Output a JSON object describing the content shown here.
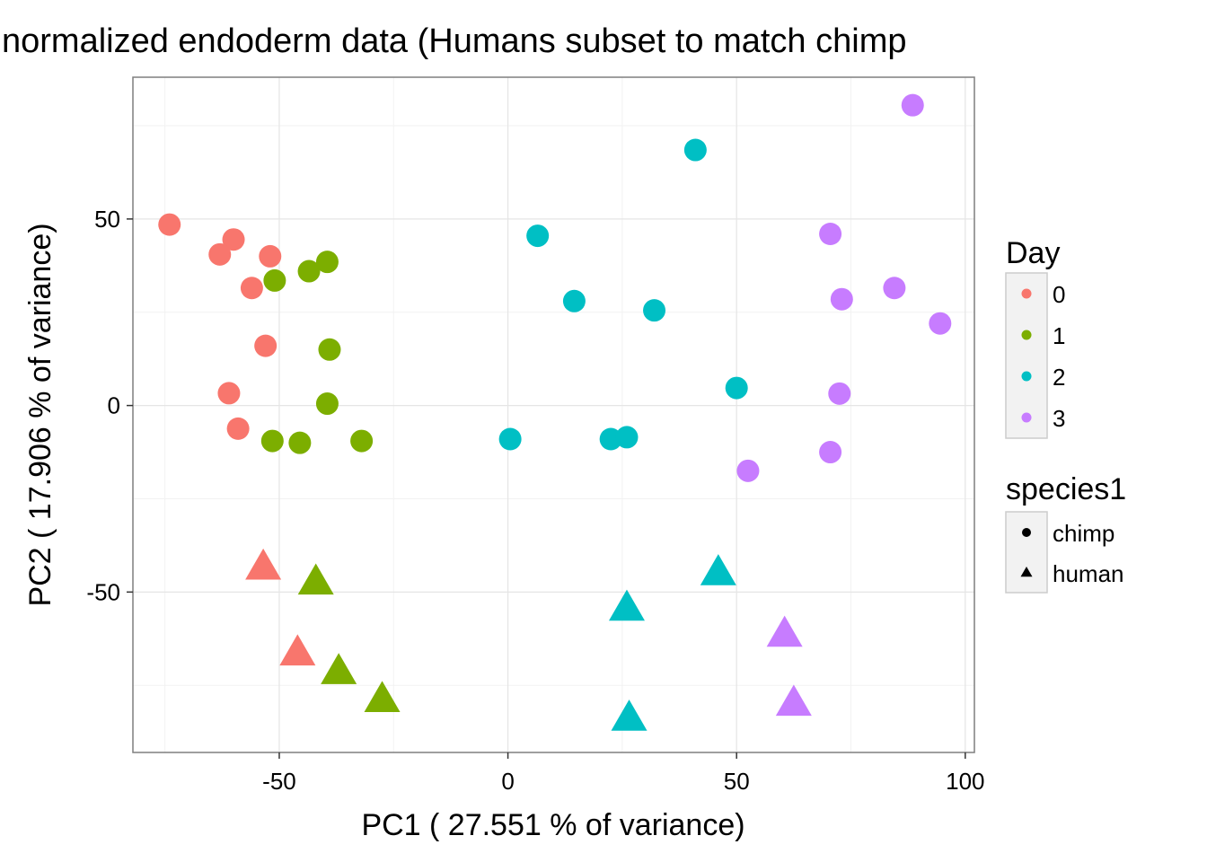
{
  "chart_data": {
    "type": "scatter",
    "title": "normalized endoderm data (Humans subset to match chimp",
    "xlabel": "PC1 ( 27.551 % of variance)",
    "ylabel": "PC2 ( 17.906 % of variance)",
    "xlim": [
      -82,
      102
    ],
    "ylim": [
      -93,
      88
    ],
    "xticks": [
      -50,
      0,
      50,
      100
    ],
    "xtick_labels": [
      "-50",
      "0",
      "50",
      "100"
    ],
    "yticks": [
      -50,
      0,
      50
    ],
    "ytick_labels": [
      "-50",
      "0",
      "50"
    ],
    "grid": true,
    "legend_position": "right",
    "legend_color": {
      "title": "Day",
      "entries": [
        {
          "label": "0",
          "color": "#F8766D"
        },
        {
          "label": "1",
          "color": "#7CAE00"
        },
        {
          "label": "2",
          "color": "#00BFC4"
        },
        {
          "label": "3",
          "color": "#C77CFF"
        }
      ]
    },
    "legend_shape": {
      "title": "species1",
      "entries": [
        {
          "label": "chimp",
          "shape": "circle"
        },
        {
          "label": "human",
          "shape": "triangle"
        }
      ]
    },
    "points": [
      {
        "x": -74,
        "y": 48.5,
        "day": "0",
        "species": "chimp"
      },
      {
        "x": -60,
        "y": 44.5,
        "day": "0",
        "species": "chimp"
      },
      {
        "x": -63,
        "y": 40.5,
        "day": "0",
        "species": "chimp"
      },
      {
        "x": -52,
        "y": 40,
        "day": "0",
        "species": "chimp"
      },
      {
        "x": -56,
        "y": 31.5,
        "day": "0",
        "species": "chimp"
      },
      {
        "x": -53,
        "y": 16,
        "day": "0",
        "species": "chimp"
      },
      {
        "x": -61,
        "y": 3.3,
        "day": "0",
        "species": "chimp"
      },
      {
        "x": -59,
        "y": -6.2,
        "day": "0",
        "species": "chimp"
      },
      {
        "x": -51,
        "y": 33.5,
        "day": "1",
        "species": "chimp"
      },
      {
        "x": -43.5,
        "y": 36,
        "day": "1",
        "species": "chimp"
      },
      {
        "x": -39.5,
        "y": 38.5,
        "day": "1",
        "species": "chimp"
      },
      {
        "x": -39,
        "y": 15,
        "day": "1",
        "species": "chimp"
      },
      {
        "x": -39.5,
        "y": 0.5,
        "day": "1",
        "species": "chimp"
      },
      {
        "x": -51.5,
        "y": -9.5,
        "day": "1",
        "species": "chimp"
      },
      {
        "x": -45.5,
        "y": -10,
        "day": "1",
        "species": "chimp"
      },
      {
        "x": -32,
        "y": -9.5,
        "day": "1",
        "species": "chimp"
      },
      {
        "x": 6.5,
        "y": 45.5,
        "day": "2",
        "species": "chimp"
      },
      {
        "x": 41,
        "y": 68.5,
        "day": "2",
        "species": "chimp"
      },
      {
        "x": 14.5,
        "y": 28,
        "day": "2",
        "species": "chimp"
      },
      {
        "x": 32,
        "y": 25.5,
        "day": "2",
        "species": "chimp"
      },
      {
        "x": 50,
        "y": 4.7,
        "day": "2",
        "species": "chimp"
      },
      {
        "x": 0.5,
        "y": -9,
        "day": "2",
        "species": "chimp"
      },
      {
        "x": 22.5,
        "y": -9,
        "day": "2",
        "species": "chimp"
      },
      {
        "x": 26,
        "y": -8.5,
        "day": "2",
        "species": "chimp"
      },
      {
        "x": 88.5,
        "y": 80.5,
        "day": "3",
        "species": "chimp"
      },
      {
        "x": 70.5,
        "y": 46,
        "day": "3",
        "species": "chimp"
      },
      {
        "x": 84.5,
        "y": 31.5,
        "day": "3",
        "species": "chimp"
      },
      {
        "x": 73,
        "y": 28.5,
        "day": "3",
        "species": "chimp"
      },
      {
        "x": 94.5,
        "y": 22,
        "day": "3",
        "species": "chimp"
      },
      {
        "x": 72.5,
        "y": 3.2,
        "day": "3",
        "species": "chimp"
      },
      {
        "x": 70.5,
        "y": -12.5,
        "day": "3",
        "species": "chimp"
      },
      {
        "x": 52.5,
        "y": -17.5,
        "day": "3",
        "species": "chimp"
      },
      {
        "x": -53.5,
        "y": -43.5,
        "day": "0",
        "species": "human"
      },
      {
        "x": -46,
        "y": -66.5,
        "day": "0",
        "species": "human"
      },
      {
        "x": -42,
        "y": -47.5,
        "day": "1",
        "species": "human"
      },
      {
        "x": -37,
        "y": -71.5,
        "day": "1",
        "species": "human"
      },
      {
        "x": -27.5,
        "y": -79,
        "day": "1",
        "species": "human"
      },
      {
        "x": 26,
        "y": -54.5,
        "day": "2",
        "species": "human"
      },
      {
        "x": 46,
        "y": -45,
        "day": "2",
        "species": "human"
      },
      {
        "x": 26.5,
        "y": -84,
        "day": "2",
        "species": "human"
      },
      {
        "x": 60.5,
        "y": -61.5,
        "day": "3",
        "species": "human"
      },
      {
        "x": 62.5,
        "y": -80,
        "day": "3",
        "species": "human"
      }
    ]
  }
}
